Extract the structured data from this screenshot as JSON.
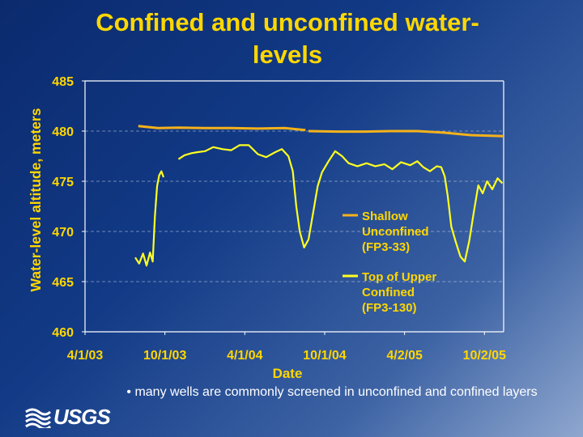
{
  "slide": {
    "title": "Confined and unconfined water-levels",
    "bullet": "• many wells are commonly screened in unconfined and confined layers",
    "logo_text": "USGS",
    "logo_icon": "usgs-wave-icon"
  },
  "colors": {
    "title": "#ffd700",
    "shallow_series": "#f5b21b",
    "upper_confined_series": "#ffff20",
    "axis": "#ffffff",
    "gridline": "#c9d3e8",
    "bullet_text": "#ffffff"
  },
  "chart_data": {
    "type": "line",
    "title": "Confined and unconfined water-levels",
    "xlabel": "Date",
    "ylabel": "Water-level altitude, meters",
    "x_ticks": [
      "4/1/03",
      "10/1/03",
      "4/1/04",
      "10/1/04",
      "4/2/05",
      "10/2/05"
    ],
    "x_tick_dates": [
      "2003-04-01",
      "2003-10-01",
      "2004-04-01",
      "2004-10-01",
      "2005-04-02",
      "2005-10-02"
    ],
    "y_ticks": [
      460,
      465,
      470,
      475,
      480,
      485
    ],
    "xlim": [
      "2003-04-01",
      "2005-11-15"
    ],
    "ylim": [
      460,
      485
    ],
    "grid": "horizontal dashed",
    "legend_position": "right, inside",
    "series": [
      {
        "name": "Shallow Unconfined (FP3-33)",
        "color": "#f5b21b",
        "points": [
          [
            "2003-08-01",
            480.5
          ],
          [
            "2003-09-15",
            480.3
          ],
          [
            "2003-11-01",
            480.35
          ],
          [
            "2004-01-01",
            480.3
          ],
          [
            "2004-03-01",
            480.3
          ],
          [
            "2004-05-01",
            480.25
          ],
          [
            "2004-07-01",
            480.3
          ],
          [
            "2004-08-18",
            480.1
          ],
          [
            null,
            null
          ],
          [
            "2004-08-25",
            480.0
          ],
          [
            "2004-11-01",
            479.95
          ],
          [
            "2005-01-01",
            479.95
          ],
          [
            "2005-03-01",
            480.0
          ],
          [
            "2005-05-01",
            480.0
          ],
          [
            "2005-07-01",
            479.85
          ],
          [
            "2005-09-01",
            479.6
          ],
          [
            "2005-11-15",
            479.5
          ]
        ]
      },
      {
        "name": "Top of Upper Confined (FP3-130)",
        "color": "#ffff20",
        "points": [
          [
            "2003-07-25",
            467.4
          ],
          [
            "2003-08-03",
            466.8
          ],
          [
            "2003-08-12",
            467.8
          ],
          [
            "2003-08-20",
            466.6
          ],
          [
            "2003-08-28",
            467.9
          ],
          [
            "2003-09-03",
            467.0
          ],
          [
            "2003-09-08",
            471.5
          ],
          [
            "2003-09-13",
            474.5
          ],
          [
            "2003-09-18",
            475.6
          ],
          [
            "2003-09-23",
            476.0
          ],
          [
            "2003-09-28",
            475.4
          ],
          [
            null,
            null
          ],
          [
            "2003-11-01",
            477.2
          ],
          [
            "2003-11-15",
            477.6
          ],
          [
            "2003-12-01",
            477.8
          ],
          [
            "2003-12-15",
            477.9
          ],
          [
            "2004-01-01",
            478.0
          ],
          [
            "2004-01-20",
            478.4
          ],
          [
            "2004-02-10",
            478.2
          ],
          [
            "2004-03-01",
            478.1
          ],
          [
            "2004-03-20",
            478.6
          ],
          [
            "2004-04-10",
            478.6
          ],
          [
            "2004-05-01",
            477.7
          ],
          [
            "2004-05-20",
            477.4
          ],
          [
            "2004-06-10",
            477.9
          ],
          [
            "2004-06-25",
            478.2
          ],
          [
            "2004-07-10",
            477.5
          ],
          [
            "2004-07-20",
            476.0
          ],
          [
            "2004-07-28",
            472.5
          ],
          [
            "2004-08-05",
            470.0
          ],
          [
            "2004-08-15",
            468.4
          ],
          [
            "2004-08-25",
            469.2
          ],
          [
            "2004-09-05",
            472.0
          ],
          [
            "2004-09-15",
            474.5
          ],
          [
            "2004-09-25",
            475.9
          ],
          [
            "2004-10-10",
            477.0
          ],
          [
            "2004-10-25",
            478.0
          ],
          [
            "2004-11-10",
            477.5
          ],
          [
            "2004-11-25",
            476.8
          ],
          [
            "2004-12-15",
            476.5
          ],
          [
            "2005-01-05",
            476.8
          ],
          [
            "2005-01-25",
            476.5
          ],
          [
            "2005-02-15",
            476.7
          ],
          [
            "2005-03-05",
            476.2
          ],
          [
            "2005-03-25",
            476.9
          ],
          [
            "2005-04-15",
            476.6
          ],
          [
            "2005-05-01",
            477.0
          ],
          [
            "2005-05-15",
            476.4
          ],
          [
            "2005-05-30",
            476.0
          ],
          [
            "2005-06-15",
            476.5
          ],
          [
            "2005-06-25",
            476.4
          ],
          [
            "2005-07-03",
            475.5
          ],
          [
            "2005-07-10",
            473.5
          ],
          [
            "2005-07-18",
            470.5
          ],
          [
            "2005-07-28",
            469.0
          ],
          [
            "2005-08-08",
            467.5
          ],
          [
            "2005-08-18",
            467.0
          ],
          [
            "2005-08-28",
            469.0
          ],
          [
            "2005-09-08",
            472.0
          ],
          [
            "2005-09-18",
            474.6
          ],
          [
            "2005-09-28",
            473.8
          ],
          [
            "2005-10-08",
            475.0
          ],
          [
            "2005-10-20",
            474.2
          ],
          [
            "2005-11-01",
            475.3
          ],
          [
            "2005-11-12",
            474.8
          ]
        ]
      }
    ]
  }
}
